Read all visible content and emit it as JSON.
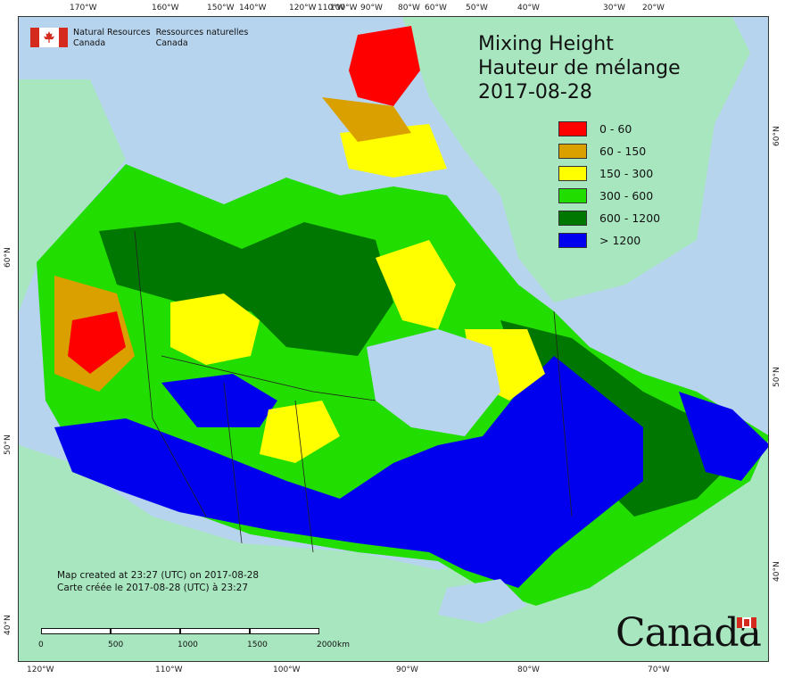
{
  "title": {
    "line1": "Mixing Height",
    "line2": "Hauteur de mélange",
    "date": "2017-08-28"
  },
  "agency": {
    "en": "Natural Resources",
    "en2": "Canada",
    "fr": "Ressources naturelles",
    "fr2": "Canada"
  },
  "legend": [
    {
      "label": "0 - 60",
      "color": "#ff0000"
    },
    {
      "label": "60 - 150",
      "color": "#d9a000"
    },
    {
      "label": "150 - 300",
      "color": "#ffff00"
    },
    {
      "label": "300 - 600",
      "color": "#22dd00"
    },
    {
      "label": "600 - 1200",
      "color": "#007700"
    },
    {
      "label": "> 1200",
      "color": "#0000ee"
    }
  ],
  "credit": {
    "en": "Map created at 23:27 (UTC) on 2017-08-28",
    "fr": "Carte créée le 2017-08-28 (UTC) à 23:27"
  },
  "scale": {
    "labels": [
      "0",
      "500",
      "1000",
      "1500",
      "2000",
      "km"
    ]
  },
  "wordmark": "Canada",
  "graticule": {
    "top": [
      "170°W",
      "160°W",
      "150°W",
      "140°W",
      "120°W",
      "110°W",
      "100°W",
      "90°W",
      "80°W",
      "60°W",
      "50°W",
      "40°W",
      "30°W",
      "20°W"
    ],
    "bottom": [
      "120°W",
      "110°W",
      "100°W",
      "90°W",
      "80°W",
      "70°W"
    ],
    "left": [
      "60°N",
      "50°N",
      "40°N"
    ],
    "right": [
      "60°N",
      "50°N",
      "40°N"
    ]
  },
  "colors": {
    "ocean": "#b7d4ee",
    "land_outside": "#a8e6c0",
    "lake": "#b7d4ee"
  }
}
